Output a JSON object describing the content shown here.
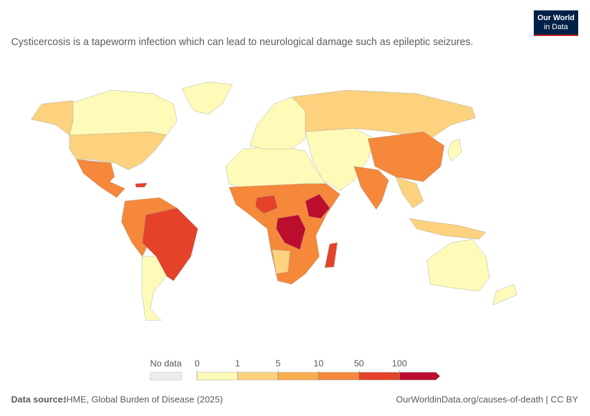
{
  "header": {
    "subtitle": "Cysticercosis is a tapeworm infection which can lead to neurological damage such as epileptic seizures.",
    "logo": [
      "Our World",
      "in Data"
    ]
  },
  "legend": {
    "no_data_label": "No data",
    "ticks": [
      0,
      1,
      5,
      10,
      50,
      100
    ],
    "colors": [
      "#fefbb9",
      "#fcd27f",
      "#f9ad4f",
      "#f5883a",
      "#e4432a",
      "#bb0d2d"
    ]
  },
  "footer": {
    "source_label": "Data source:",
    "source": "IHME, Global Burden of Disease (2025)",
    "link": "OurWorldinData.org/causes-of-death | CC BY"
  }
}
